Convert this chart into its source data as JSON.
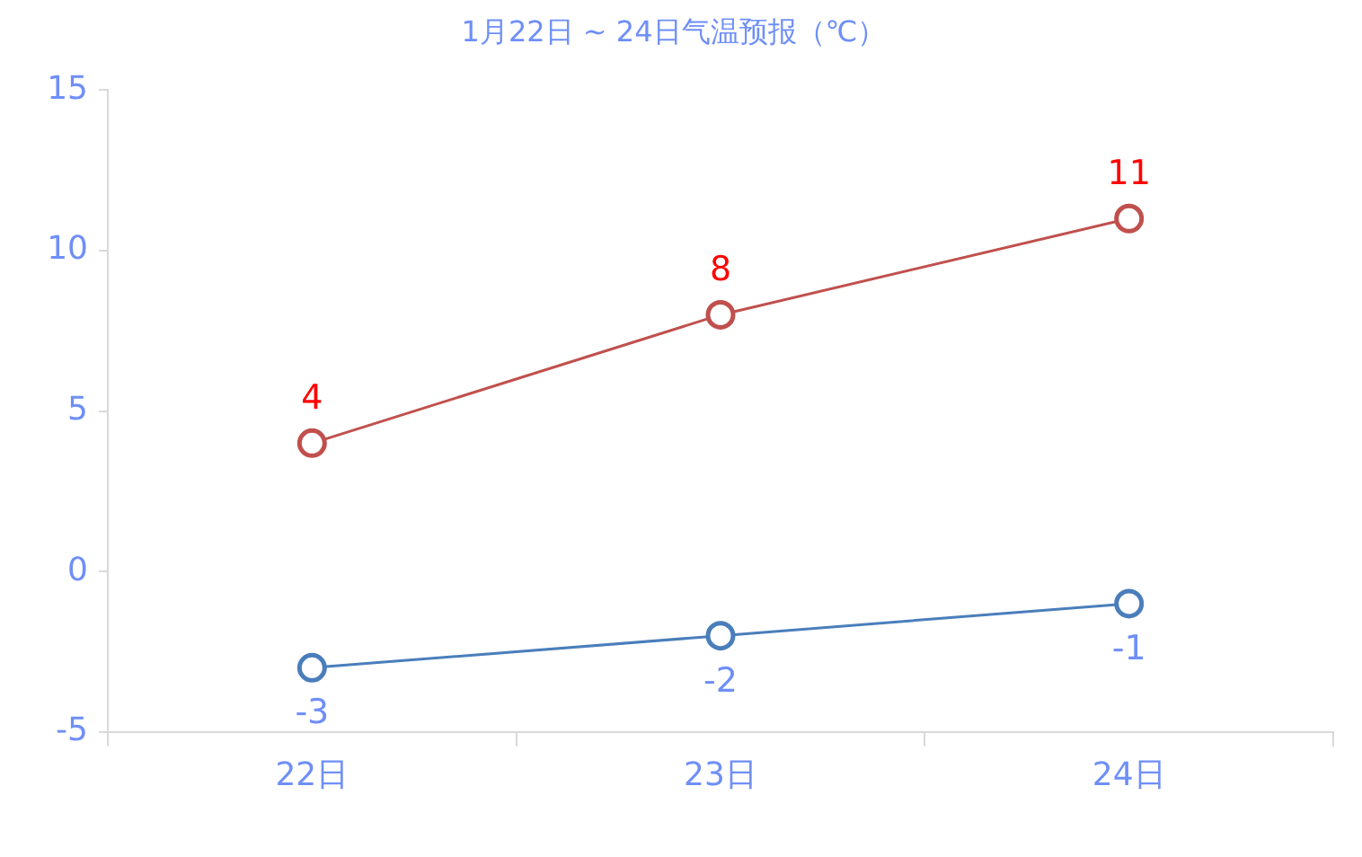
{
  "chart_data": {
    "type": "line",
    "title": "1月22日 ~ 24日气温预报（℃）",
    "categories": [
      "22日",
      "23日",
      "24日"
    ],
    "series": [
      {
        "color": "#c0504d",
        "values": [
          4,
          8,
          11
        ]
      },
      {
        "color": "#4a7ebb",
        "values": [
          -3,
          -2,
          -1
        ]
      }
    ],
    "ylim": [
      -5,
      15
    ],
    "yticks": [
      -5,
      0,
      5,
      10,
      15
    ],
    "marker": "circle",
    "data_labels": true
  }
}
